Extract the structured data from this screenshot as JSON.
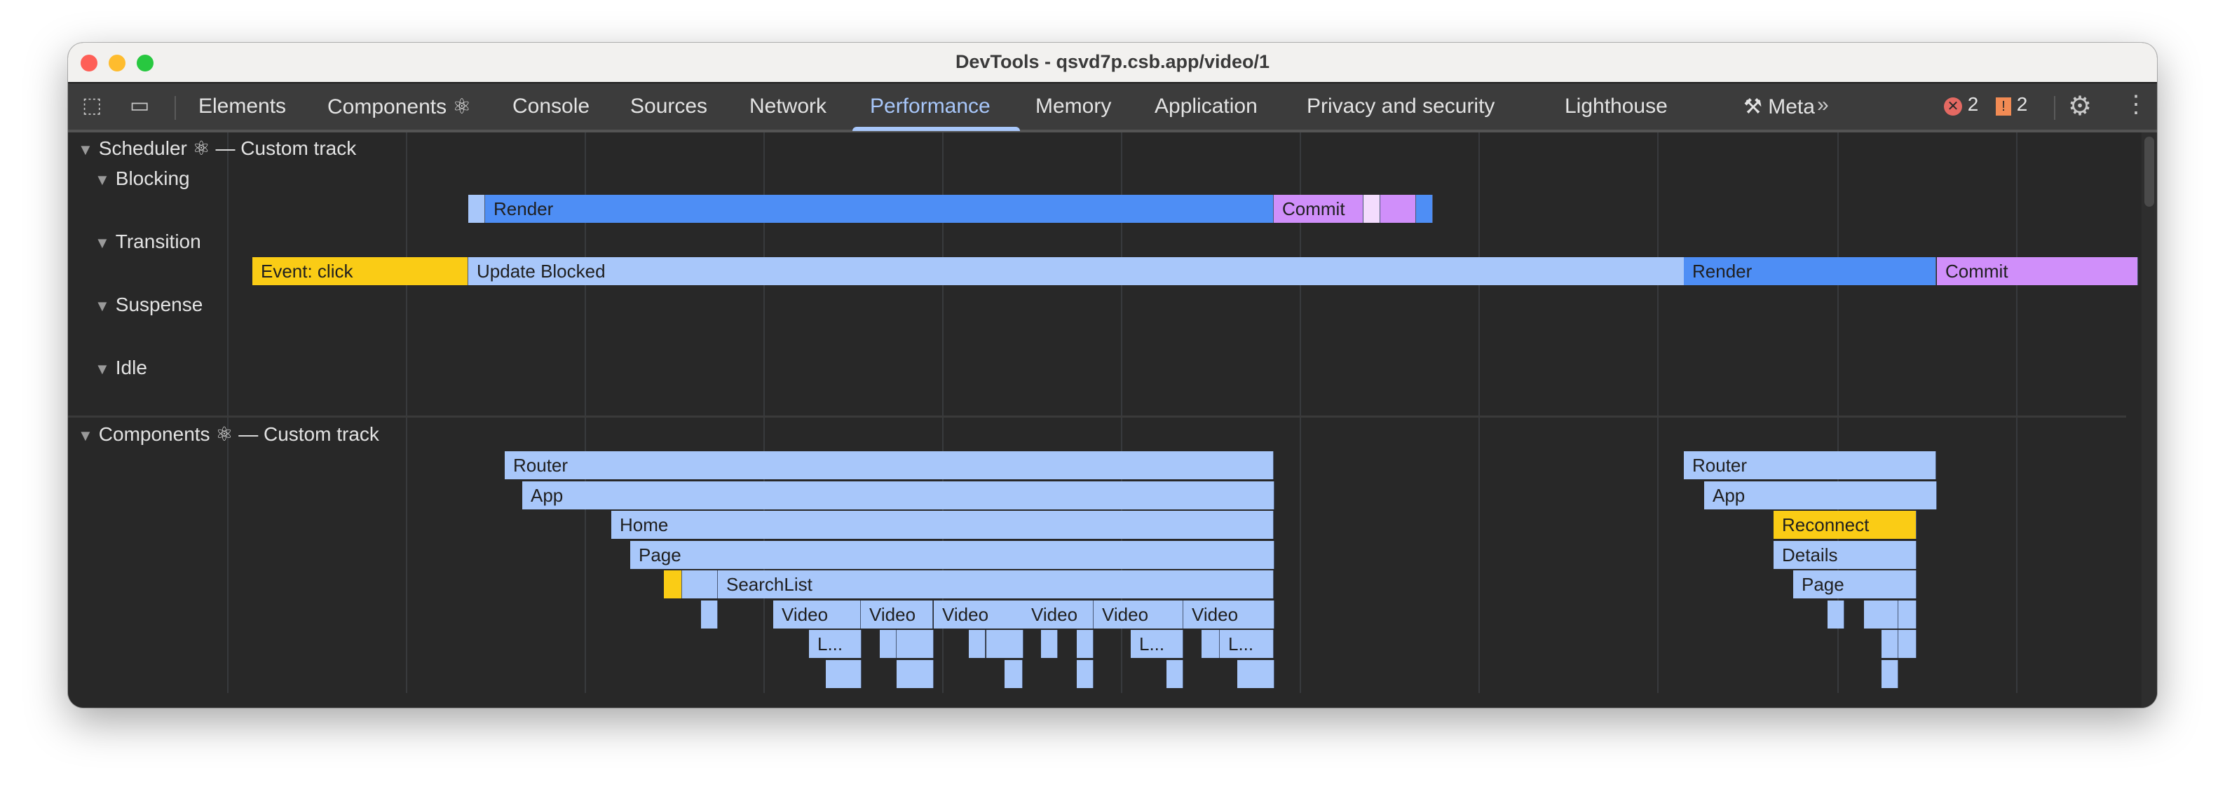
{
  "window": {
    "title": "DevTools - qsvd7p.csb.app/video/1"
  },
  "toolbar": {
    "tabs": [
      {
        "label": "Elements"
      },
      {
        "label": "Components ⚛"
      },
      {
        "label": "Console"
      },
      {
        "label": "Sources"
      },
      {
        "label": "Network"
      },
      {
        "label": "Performance",
        "active": true
      },
      {
        "label": "Memory"
      },
      {
        "label": "Application"
      },
      {
        "label": "Privacy and security"
      },
      {
        "label": "Lighthouse"
      },
      {
        "label": "Meta"
      }
    ],
    "more_icon": "chevron-double-right-icon",
    "errors": "2",
    "warnings": "2",
    "colors": {
      "active": "#a8c7fa",
      "error": "#e46962",
      "warning": "#f28b54"
    }
  },
  "scheduler": {
    "header": "Scheduler ⚛ — Custom track",
    "lanes": [
      "Blocking",
      "Transition",
      "Suspense",
      "Idle"
    ],
    "blocking_bars": [
      "",
      "Render",
      "Commit",
      "",
      "",
      ""
    ],
    "transition_bars": [
      "Event: click",
      "Update Blocked",
      "Render",
      "Commit"
    ]
  },
  "components": {
    "header": "Components ⚛ — Custom track",
    "labels": {
      "router": "Router",
      "app": "App",
      "home": "Home",
      "page": "Page",
      "searchlist": "SearchList",
      "video": "Video",
      "truncated": "L...",
      "reconnect": "Reconnect",
      "details": "Details"
    }
  },
  "colors": {
    "render": "#4e8ef5",
    "light": "#a8c7fa",
    "commit": "#d08ffa",
    "commit_light": "#f3dcfd",
    "event": "#facc15"
  }
}
